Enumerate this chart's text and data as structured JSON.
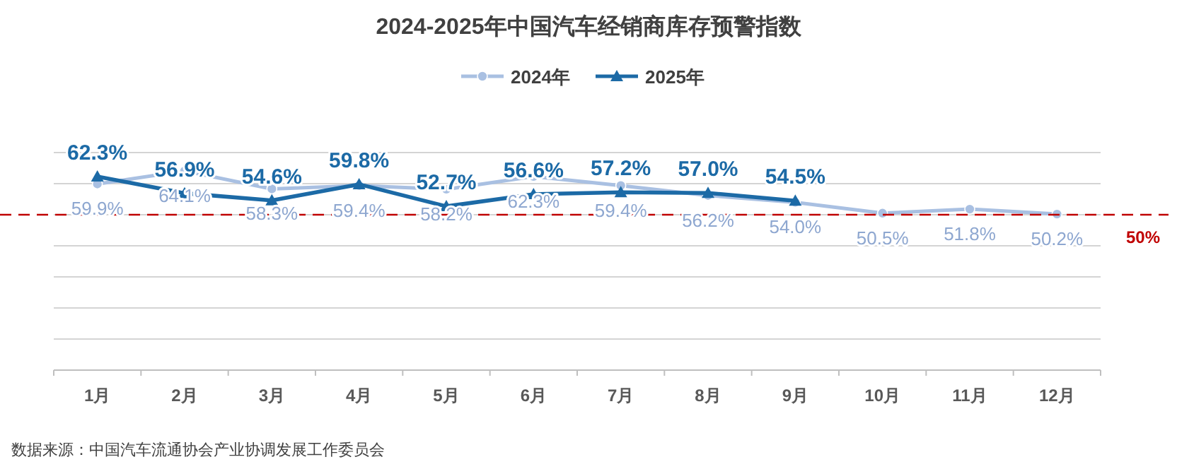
{
  "chart_data": {
    "type": "line",
    "title": "2024-2025年中国汽车经销商库存预警指数",
    "categories": [
      "1月",
      "2月",
      "3月",
      "4月",
      "5月",
      "6月",
      "7月",
      "8月",
      "9月",
      "10月",
      "11月",
      "12月"
    ],
    "series": [
      {
        "name": "2024年",
        "color": "#a9c0e2",
        "marker": "circle",
        "values": [
          59.9,
          64.1,
          58.3,
          59.4,
          58.2,
          62.3,
          59.4,
          56.2,
          54.0,
          50.5,
          51.8,
          50.2
        ],
        "value_labels": [
          "59.9%",
          "64.1%",
          "58.3%",
          "59.4%",
          "58.2%",
          "62.3%",
          "59.4%",
          "56.2%",
          "54.0%",
          "50.5%",
          "51.8%",
          "50.2%"
        ]
      },
      {
        "name": "2025年",
        "color": "#1c6aa6",
        "marker": "triangle",
        "values": [
          62.3,
          56.9,
          54.6,
          59.8,
          52.7,
          56.6,
          57.2,
          57.0,
          54.5,
          null,
          null,
          null
        ],
        "value_labels": [
          "62.3%",
          "56.9%",
          "54.6%",
          "59.8%",
          "52.7%",
          "56.6%",
          "57.2%",
          "57.0%",
          "54.5%",
          null,
          null,
          null
        ]
      }
    ],
    "ylim": [
      0,
      70
    ],
    "yticks": [
      {
        "value": 0,
        "label": null
      },
      {
        "value": 10,
        "label": null
      },
      {
        "value": 20,
        "label": null
      },
      {
        "value": 30,
        "label": null
      },
      {
        "value": 40,
        "label": null
      },
      {
        "value": 50,
        "label": null
      },
      {
        "value": 60,
        "label": null
      },
      {
        "value": 70,
        "label": null
      }
    ],
    "tick_labels": "x",
    "grid": "y",
    "legend": "top",
    "line_style": "solid",
    "ref_lines": [
      {
        "axis": "y",
        "value": 50,
        "label": "50%",
        "color": "#c00000",
        "line_style": "dashed"
      }
    ],
    "annotations": [
      "数据来源：中国汽车流通协会产业协调发展工作委员会"
    ]
  }
}
